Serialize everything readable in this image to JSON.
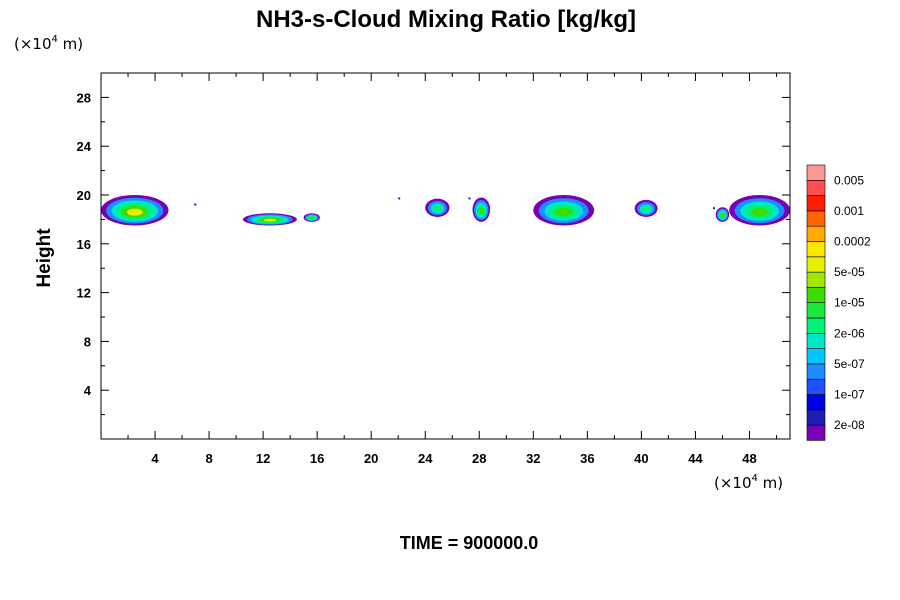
{
  "chart_data": {
    "type": "heatmap",
    "title": "NH3-s-Cloud Mixing Ratio [kg/kg]",
    "xlabel": "",
    "ylabel": "Height",
    "x_unit": {
      "prefix": "(×10",
      "exp": "4",
      "suffix": " m)"
    },
    "y_unit": {
      "prefix": "(×10",
      "exp": "4",
      "suffix": " m)"
    },
    "xlim": [
      0,
      51
    ],
    "ylim": [
      0,
      30
    ],
    "x_ticks": [
      4,
      8,
      12,
      16,
      20,
      24,
      28,
      32,
      36,
      40,
      44,
      48
    ],
    "y_ticks": [
      4,
      8,
      12,
      16,
      20,
      24,
      28
    ],
    "grid": false,
    "colorbar": {
      "colors": [
        "#7a00b4",
        "#1e1eb4",
        "#0000e6",
        "#1e50ff",
        "#1e8cff",
        "#00c8ff",
        "#00e6c8",
        "#00f078",
        "#1ee63c",
        "#3cdc00",
        "#a0e600",
        "#e6f000",
        "#ffe600",
        "#ffaa00",
        "#ff6400",
        "#ff1e00",
        "#ff5050",
        "#ff9696"
      ],
      "labels": [
        "2e-08",
        "1e-07",
        "5e-07",
        "2e-06",
        "1e-05",
        "5e-05",
        "0.0002",
        "0.001",
        "0.005"
      ]
    },
    "cloud_patches": [
      {
        "x_range": [
          0.0,
          5.0
        ],
        "z_range": [
          17.5,
          20.0
        ],
        "max": "5e-05"
      },
      {
        "x_range": [
          10.5,
          14.5
        ],
        "z_range": [
          17.5,
          18.5
        ],
        "max": "5e-05"
      },
      {
        "x_range": [
          15.0,
          16.2
        ],
        "z_range": [
          17.8,
          18.5
        ],
        "max": "1e-05"
      },
      {
        "x_range": [
          24.0,
          25.8
        ],
        "z_range": [
          18.2,
          19.7
        ],
        "max": "2e-06"
      },
      {
        "x_range": [
          27.5,
          28.8
        ],
        "z_range": [
          17.8,
          19.8
        ],
        "max": "1e-05"
      },
      {
        "x_range": [
          32.0,
          36.5
        ],
        "z_range": [
          17.5,
          20.0
        ],
        "max": "2e-05"
      },
      {
        "x_range": [
          39.5,
          41.2
        ],
        "z_range": [
          18.2,
          19.6
        ],
        "max": "2e-06"
      },
      {
        "x_range": [
          45.5,
          46.5
        ],
        "z_range": [
          17.8,
          19.0
        ],
        "max": "1e-05"
      },
      {
        "x_range": [
          46.5,
          51.0
        ],
        "z_range": [
          17.5,
          20.0
        ],
        "max": "2e-05"
      }
    ]
  },
  "time_label": "TIME = 900000.0"
}
